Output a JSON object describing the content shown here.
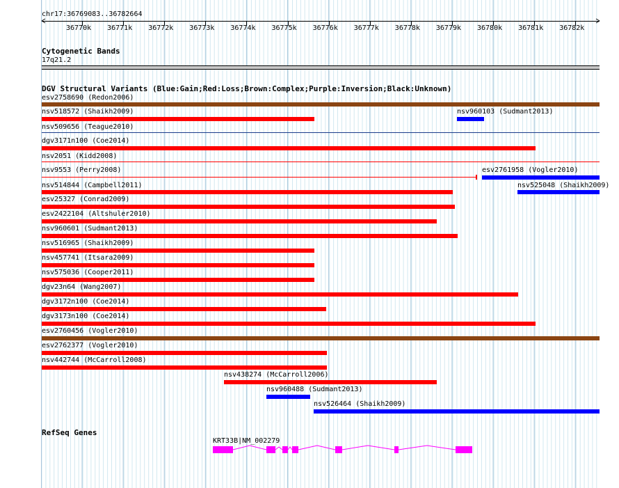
{
  "ruler": {
    "position_label": "chr17:36769083..36782664",
    "ticks": [
      "36770k",
      "36771k",
      "36772k",
      "36773k",
      "36774k",
      "36775k",
      "36776k",
      "36777k",
      "36778k",
      "36779k",
      "36780k",
      "36781k",
      "36782k"
    ]
  },
  "cyto": {
    "title": "Cytogenetic Bands",
    "band_label": "17q21.2"
  },
  "dgv": {
    "title": "DGV Structural Variants (Blue:Gain;Red:Loss;Brown:Complex;Purple:Inversion;Black:Unknown)",
    "colors": {
      "gain": "#0000ff",
      "loss": "#ff0000",
      "complex": "#8b4513",
      "inversion": "#800080",
      "unknown": "#000000"
    },
    "rows": [
      {
        "name": "esv2758690 (Redon2006)",
        "type": "complex"
      },
      {
        "name": "nsv518572 (Shaikh2009)",
        "type": "loss"
      },
      {
        "name": "nsv960103 (Sudmant2013)",
        "type": "gain"
      },
      {
        "name": "nsv509656 (Teague2010)",
        "type": "unknown"
      },
      {
        "name": "dgv3171n100 (Coe2014)",
        "type": "loss"
      },
      {
        "name": "nsv2051 (Kidd2008)",
        "type": "loss"
      },
      {
        "name": "nsv9553 (Perry2008)",
        "type": "loss"
      },
      {
        "name": "esv2761958 (Vogler2010)",
        "type": "gain"
      },
      {
        "name": "nsv514844 (Campbell2011)",
        "type": "loss"
      },
      {
        "name": "nsv525048 (Shaikh2009)",
        "type": "gain"
      },
      {
        "name": "esv25327 (Conrad2009)",
        "type": "loss"
      },
      {
        "name": "esv2422104 (Altshuler2010)",
        "type": "loss"
      },
      {
        "name": "nsv960601 (Sudmant2013)",
        "type": "loss"
      },
      {
        "name": "nsv516965 (Shaikh2009)",
        "type": "loss"
      },
      {
        "name": "nsv457741 (Itsara2009)",
        "type": "loss"
      },
      {
        "name": "nsv575036 (Cooper2011)",
        "type": "loss"
      },
      {
        "name": "dgv23n64 (Wang2007)",
        "type": "loss"
      },
      {
        "name": "dgv3172n100 (Coe2014)",
        "type": "loss"
      },
      {
        "name": "dgv3173n100 (Coe2014)",
        "type": "loss"
      },
      {
        "name": "esv2760456 (Vogler2010)",
        "type": "complex"
      },
      {
        "name": "esv2762377 (Vogler2010)",
        "type": "loss"
      },
      {
        "name": "nsv442744 (McCarroll2008)",
        "type": "loss"
      },
      {
        "name": "nsv438274 (McCarroll2006)",
        "type": "loss"
      },
      {
        "name": "nsv960488 (Sudmant2013)",
        "type": "gain"
      },
      {
        "name": "nsv526464 (Shaikh2009)",
        "type": "gain"
      }
    ]
  },
  "refseq": {
    "title": "RefSeq Genes",
    "gene_label": "KRT33B|NM_002279",
    "color": "#ff00ff"
  }
}
